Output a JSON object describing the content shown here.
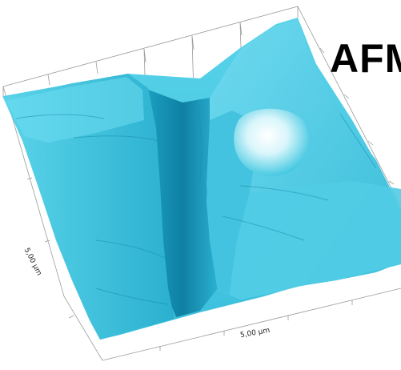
{
  "overlay_title": "AFM",
  "scan": {
    "x_extent_label": "5,00 µm",
    "y_extent_label": "5,00 µm"
  },
  "colors": {
    "surface_base": "#3ec7e0",
    "surface_shadow": "#128fae",
    "surface_highlight": "#ffffff",
    "grid": "#9a9a9a"
  }
}
